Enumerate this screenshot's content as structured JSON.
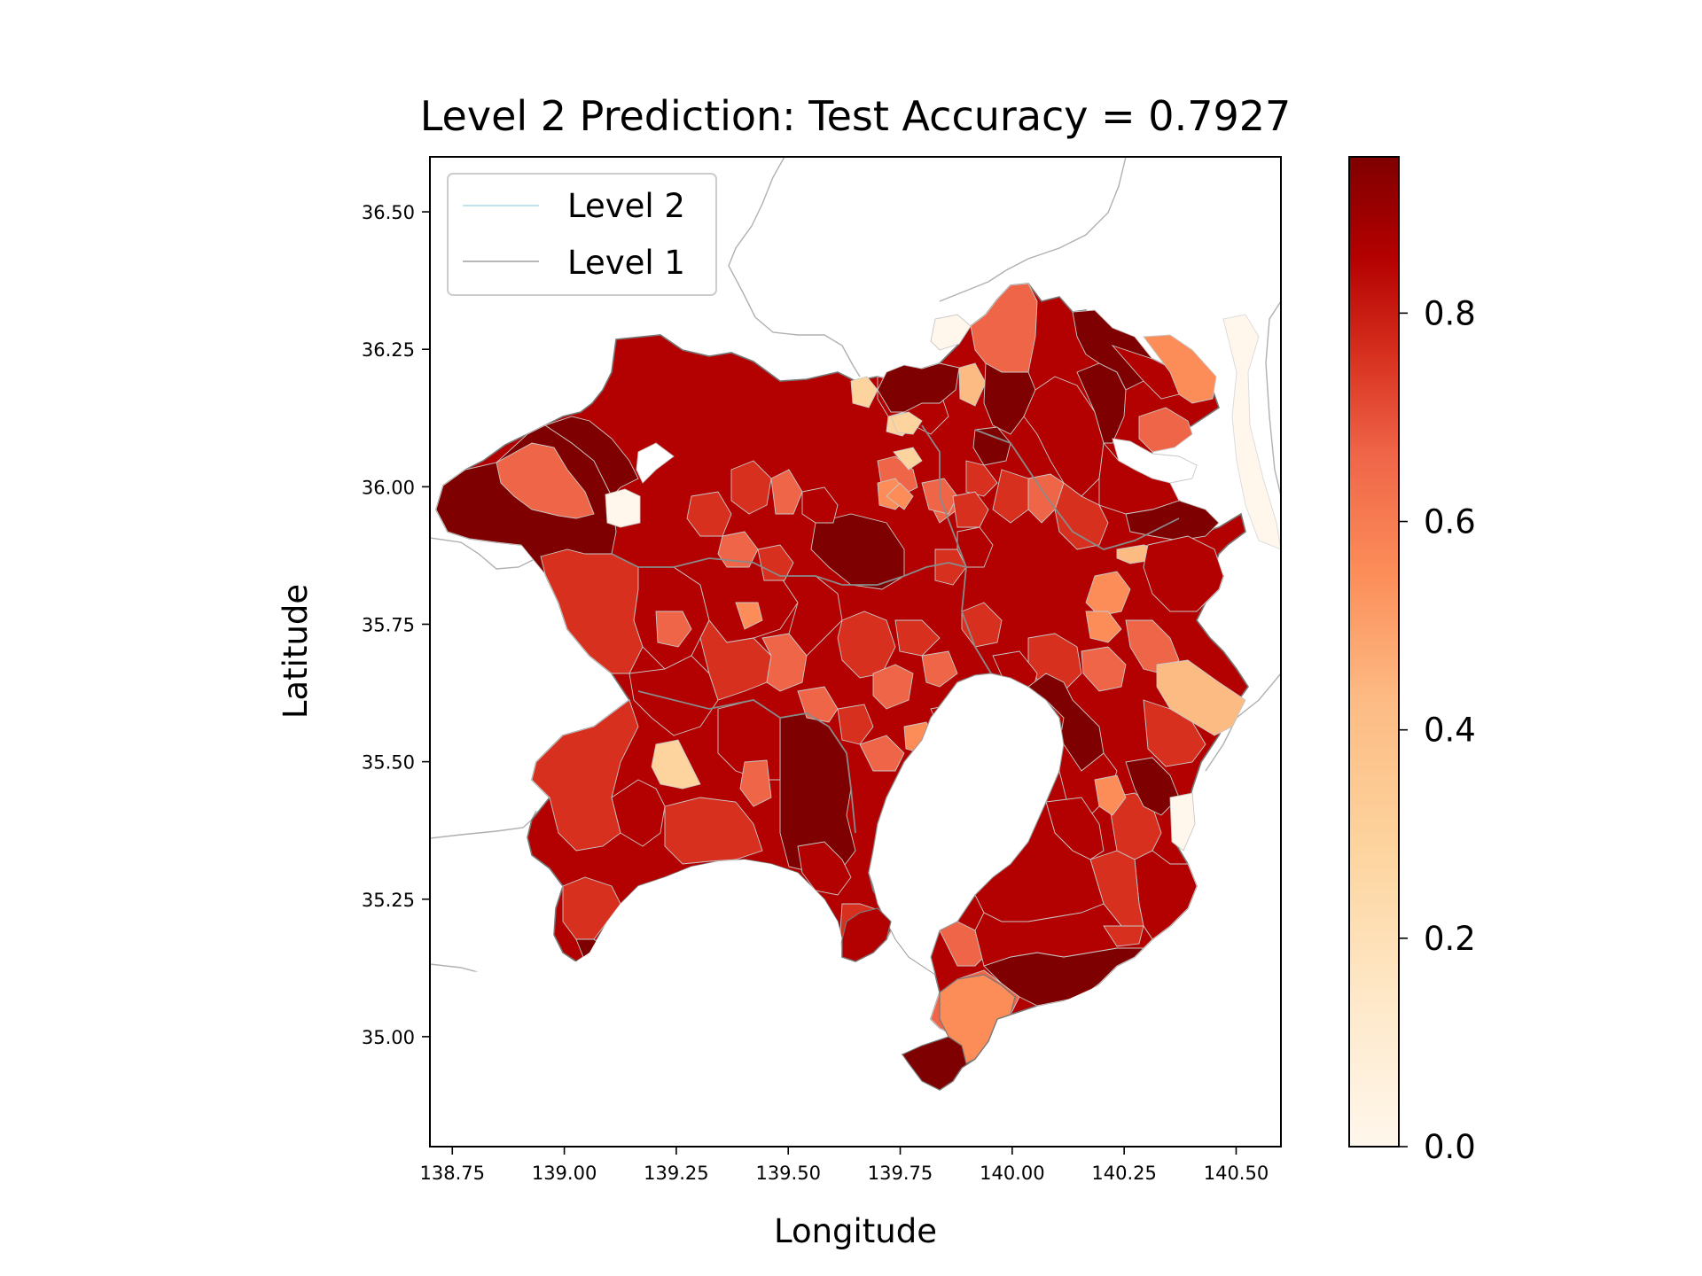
{
  "title": "Level 2 Prediction: Test Accuracy = 0.7927",
  "chart_data": {
    "type": "choropleth",
    "title": "Level 2 Prediction: Test Accuracy = 0.7927",
    "xlabel": "Longitude",
    "ylabel": "Latitude",
    "xlim": [
      138.7,
      140.6
    ],
    "ylim": [
      34.8,
      36.6
    ],
    "xticks": [
      "138.75",
      "139.00",
      "139.25",
      "139.50",
      "139.75",
      "140.00",
      "140.25",
      "140.50"
    ],
    "yticks": [
      "35.00",
      "35.25",
      "35.50",
      "35.75",
      "36.00",
      "36.25",
      "36.50"
    ],
    "colorbar": {
      "colormap": "OrRd",
      "range": [
        0.0,
        0.95
      ],
      "ticks": [
        "0.0",
        "0.2",
        "0.4",
        "0.6",
        "0.8"
      ]
    },
    "legend": {
      "placement": "upper-left",
      "entries": [
        {
          "label": "Level 2",
          "color": "#add8e6"
        },
        {
          "label": "Level 1",
          "color": "#a0a0a0"
        }
      ]
    },
    "colors": {
      "dark": "#7f0000",
      "high": "#b30000",
      "mid": "#d7301f",
      "light": "#ef6548",
      "pale": "#fc8d59",
      "faint": "#fdd49e",
      "empty": "#fff7ec"
    }
  }
}
